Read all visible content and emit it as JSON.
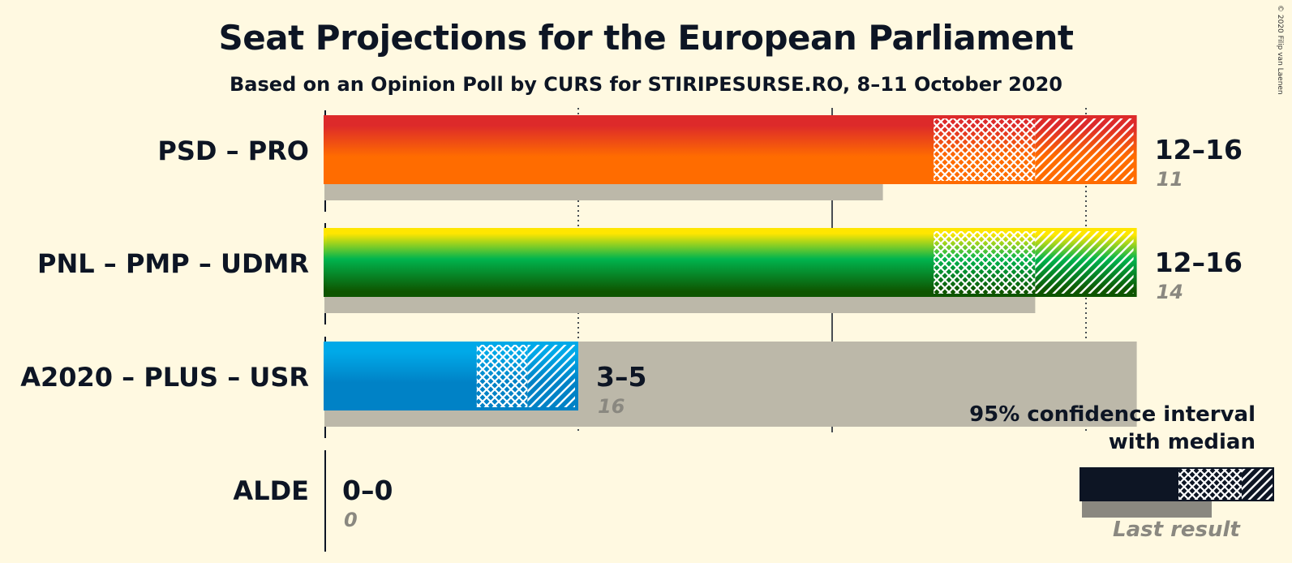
{
  "header": {
    "title": "Seat Projections for the European Parliament",
    "subtitle": "Based on an Opinion Poll by CURS for STIRIPESURSE.RO, 8–11 October 2020",
    "copyright": "© 2020 Filip van Laenen"
  },
  "chart_data": {
    "type": "bar",
    "orientation": "horizontal",
    "x_unit": "seats",
    "xlim": [
      0,
      16
    ],
    "gridlines_solid": [
      0,
      10
    ],
    "gridlines_dotted": [
      5,
      15
    ],
    "categories": [
      "PSD – PRO",
      "PNL – PMP – UDMR",
      "A2020 – PLUS – USR",
      "ALDE"
    ],
    "series": [
      {
        "name": "95% confidence interval",
        "values": [
          {
            "low": 12,
            "median": 14,
            "high": 16,
            "range_label": "12–16"
          },
          {
            "low": 12,
            "median": 14,
            "high": 16,
            "range_label": "12–16"
          },
          {
            "low": 3,
            "median": 4,
            "high": 5,
            "range_label": "3–5"
          },
          {
            "low": 0,
            "median": 0,
            "high": 0,
            "range_label": "0–0"
          }
        ]
      },
      {
        "name": "Last result",
        "values": [
          11,
          14,
          16,
          0
        ]
      }
    ],
    "colors": [
      [
        "#DD2A2A",
        "#FF6C00"
      ],
      [
        "#FFE600",
        "#00B44E",
        "#0E5500"
      ],
      [
        "#00A9E8",
        "#0082C6"
      ],
      [
        "#0A3C86"
      ]
    ],
    "last_result_color": "#BCB8A9",
    "legend": {
      "title_line1": "95% confidence interval",
      "title_line2": "with median",
      "last_result_label": "Last result",
      "placement": "bottom-right"
    }
  }
}
